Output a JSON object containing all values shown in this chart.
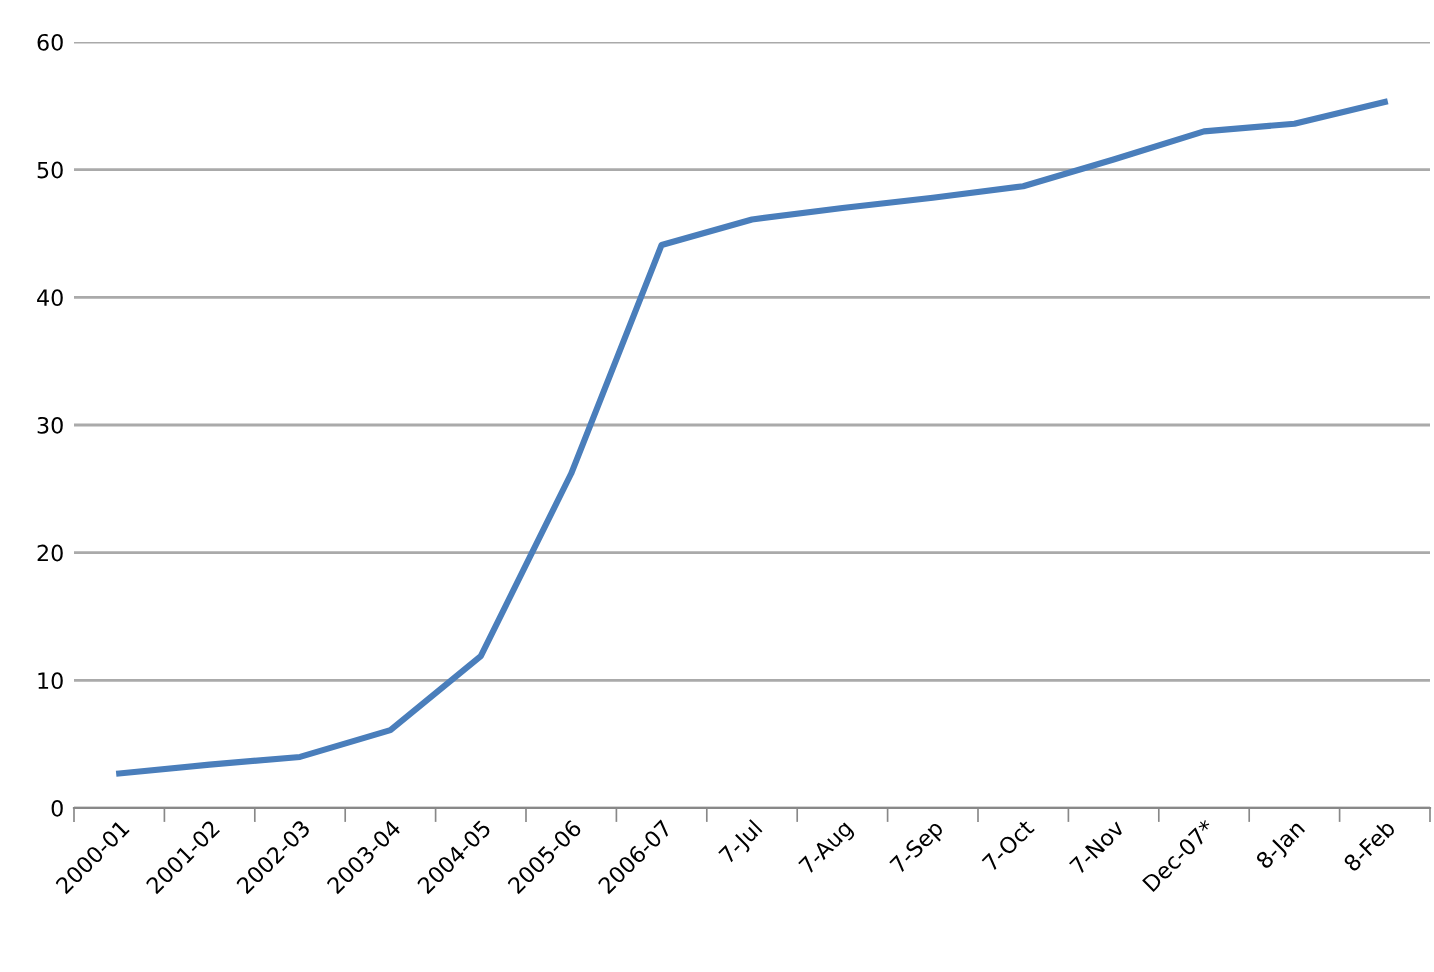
{
  "chart_data": {
    "type": "line",
    "categories": [
      "2000-01",
      "2001-02",
      "2002-03",
      "2003-04",
      "2004-05",
      "2005-06",
      "2006-07",
      "7-Jul",
      "7-Aug",
      "7-Sep",
      "7-Oct",
      "7-Nov",
      "Dec-07*",
      "8-Jan",
      "8-Feb"
    ],
    "series": [
      {
        "color": "#4a7ebb",
        "values": [
          2.7,
          3.4,
          4.0,
          6.1,
          11.9,
          26.2,
          44.1,
          46.1,
          47.0,
          47.8,
          48.7,
          50.8,
          53.0,
          53.6,
          55.3
        ]
      }
    ],
    "ylim": [
      0,
      60
    ],
    "yticks": [
      0,
      10,
      20,
      30,
      40,
      50,
      60
    ],
    "grid": "y",
    "legend": false,
    "marker": "none",
    "line_style": "solid"
  }
}
